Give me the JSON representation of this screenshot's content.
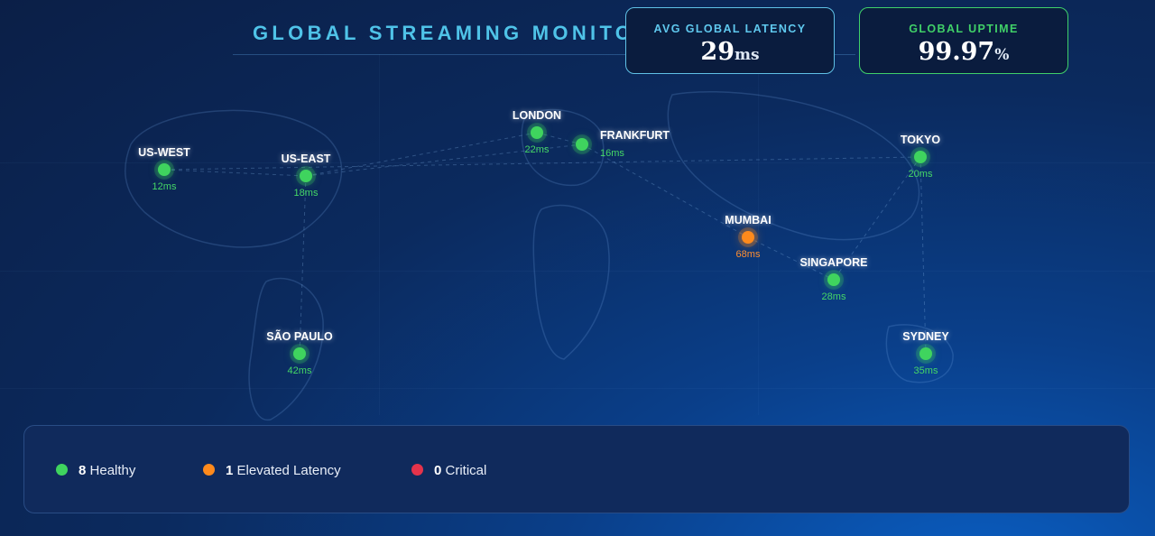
{
  "header": {
    "title": "GLOBAL STREAMING MONITOR",
    "stats": {
      "latency": {
        "label": "AVG GLOBAL LATENCY",
        "value": "29",
        "unit": "ms"
      },
      "uptime": {
        "label": "GLOBAL UPTIME",
        "value": "99.97",
        "unit": "%"
      }
    }
  },
  "nodes": [
    {
      "id": "us-west",
      "name": "US-WEST",
      "latency": "12ms",
      "status": "healthy"
    },
    {
      "id": "us-east",
      "name": "US-EAST",
      "latency": "18ms",
      "status": "healthy"
    },
    {
      "id": "london",
      "name": "LONDON",
      "latency": "22ms",
      "status": "healthy"
    },
    {
      "id": "frankfurt",
      "name": "FRANKFURT",
      "latency": "16ms",
      "status": "healthy"
    },
    {
      "id": "tokyo",
      "name": "TOKYO",
      "latency": "20ms",
      "status": "healthy"
    },
    {
      "id": "mumbai",
      "name": "MUMBAI",
      "latency": "68ms",
      "status": "elevated"
    },
    {
      "id": "singapore",
      "name": "SINGAPORE",
      "latency": "28ms",
      "status": "healthy"
    },
    {
      "id": "sao-paulo",
      "name": "SÃO PAULO",
      "latency": "42ms",
      "status": "healthy"
    },
    {
      "id": "sydney",
      "name": "SYDNEY",
      "latency": "35ms",
      "status": "healthy"
    }
  ],
  "legend": {
    "healthy": {
      "count": "8",
      "label": "Healthy"
    },
    "elevated": {
      "count": "1",
      "label": "Elevated Latency"
    },
    "critical": {
      "count": "0",
      "label": "Critical"
    }
  },
  "colors": {
    "healthy": "#3fd45e",
    "elevated": "#ff8a1c",
    "critical": "#e5334b",
    "accent": "#4fc3e8"
  }
}
